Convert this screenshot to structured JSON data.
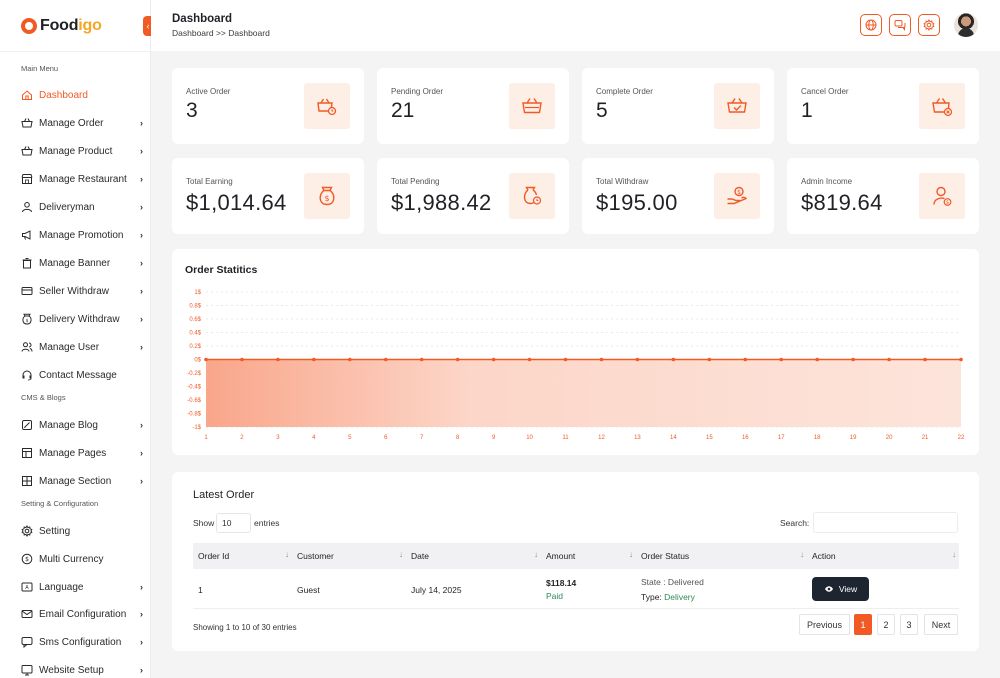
{
  "brand": {
    "name_prefix": "Food",
    "name_accent": "igo"
  },
  "sidebar": {
    "collapse_glyph": "‹",
    "section_main": "Main Menu",
    "section_cms": "CMS & Blogs",
    "section_settings": "Setting & Configuration",
    "items": [
      {
        "label": "Dashboard",
        "icon": "home-icon",
        "has_children": false,
        "active": true
      },
      {
        "label": "Manage Order",
        "icon": "basket-icon",
        "has_children": true
      },
      {
        "label": "Manage Product",
        "icon": "basket-icon",
        "has_children": true
      },
      {
        "label": "Manage Restaurant",
        "icon": "store-icon",
        "has_children": true
      },
      {
        "label": "Deliveryman",
        "icon": "user-icon",
        "has_children": true
      },
      {
        "label": "Manage Promotion",
        "icon": "megaphone-icon",
        "has_children": true
      },
      {
        "label": "Manage Banner",
        "icon": "trash-icon",
        "has_children": true
      },
      {
        "label": "Seller Withdraw",
        "icon": "card-icon",
        "has_children": true
      },
      {
        "label": "Delivery Withdraw",
        "icon": "money-bag-icon",
        "has_children": true
      },
      {
        "label": "Manage User",
        "icon": "users-icon",
        "has_children": true
      },
      {
        "label": "Contact Message",
        "icon": "headset-icon",
        "has_children": false
      },
      {
        "label": "Manage Blog",
        "icon": "blog-icon",
        "has_children": true
      },
      {
        "label": "Manage Pages",
        "icon": "pages-icon",
        "has_children": true
      },
      {
        "label": "Manage Section",
        "icon": "section-icon",
        "has_children": true
      },
      {
        "label": "Setting",
        "icon": "gear-icon",
        "has_children": false
      },
      {
        "label": "Multi Currency",
        "icon": "currency-icon",
        "has_children": false
      },
      {
        "label": "Language",
        "icon": "language-icon",
        "has_children": true
      },
      {
        "label": "Email Configuration",
        "icon": "email-icon",
        "has_children": true
      },
      {
        "label": "Sms Configuration",
        "icon": "sms-icon",
        "has_children": true
      },
      {
        "label": "Website Setup",
        "icon": "website-icon",
        "has_children": true
      }
    ],
    "chevron": "›"
  },
  "header": {
    "title": "Dashboard",
    "breadcrumb": "Dashboard >> Dashboard",
    "icons": [
      "globe-icon",
      "chat-icon",
      "gear-icon"
    ]
  },
  "stats": [
    {
      "label": "Active Order",
      "value": "3",
      "icon": "basket-clock-icon"
    },
    {
      "label": "Pending Order",
      "value": "21",
      "icon": "basket-icon"
    },
    {
      "label": "Complete Order",
      "value": "5",
      "icon": "basket-check-icon"
    },
    {
      "label": "Cancel Order",
      "value": "1",
      "icon": "basket-x-icon"
    },
    {
      "label": "Total Earning",
      "value": "$1,014.64",
      "icon": "money-bag-icon"
    },
    {
      "label": "Total Pending",
      "value": "$1,988.42",
      "icon": "money-bag-clock-icon"
    },
    {
      "label": "Total Withdraw",
      "value": "$195.00",
      "icon": "hand-coin-icon"
    },
    {
      "label": "Admin Income",
      "value": "$819.64",
      "icon": "user-coin-icon"
    }
  ],
  "chart_data": {
    "type": "area",
    "title": "Order Statitics",
    "x": [
      1,
      2,
      3,
      4,
      5,
      6,
      7,
      8,
      9,
      10,
      11,
      12,
      13,
      14,
      15,
      16,
      17,
      18,
      19,
      20,
      21,
      22
    ],
    "series": [
      {
        "values": [
          0,
          0,
          0,
          0,
          0,
          0,
          0,
          0,
          0,
          0,
          0,
          0,
          0,
          0,
          0,
          0,
          0,
          0,
          0,
          0,
          0,
          0
        ]
      }
    ],
    "yticks": [
      "1$",
      "0.8$",
      "0.6$",
      "0.4$",
      "0.2$",
      "0$",
      "-0.2$",
      "-0.4$",
      "-0.6$",
      "-0.8$",
      "-1$"
    ],
    "ylim": [
      -1,
      1
    ],
    "grid": true,
    "color": "#f15a24",
    "fill_color": "#fcd6c8"
  },
  "orders": {
    "title": "Latest Order",
    "show_label": "Show",
    "show_value": "10",
    "entries_label": "entries",
    "search_label": "Search:",
    "columns": [
      "Order Id",
      "Customer",
      "Date",
      "Amount",
      "Order Status",
      "Action"
    ],
    "sort_glyph": "↓",
    "rows": [
      {
        "id": "1",
        "customer": "Guest",
        "date": "July 14, 2025",
        "amount": "$118.14",
        "payment": "Paid",
        "state": "State : Delivered",
        "type_label": "Type:",
        "type_value": "Delivery",
        "action": "View"
      }
    ],
    "showing": "Showing 1 to 10 of 30 entries",
    "pagination": {
      "previous": "Previous",
      "pages": [
        "1",
        "2",
        "3"
      ],
      "current": "1",
      "next": "Next"
    }
  },
  "colors": {
    "accent": "#f15a24",
    "accent_soft": "#fdeee6",
    "dark_button": "#1c2530",
    "success": "#2e8b57"
  }
}
